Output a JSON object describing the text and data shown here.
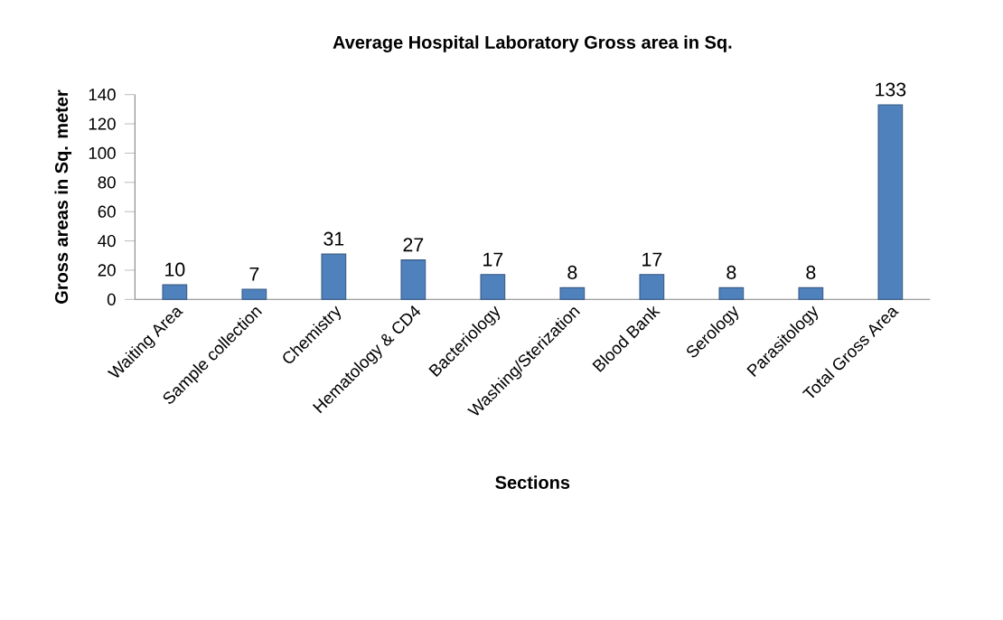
{
  "chart_data": {
    "type": "bar",
    "title": "Average Hospital Laboratory Gross area in Sq.",
    "xlabel": "Sections",
    "ylabel": "Gross areas in Sq. meter",
    "categories": [
      "Waiting Area",
      "Sample collection",
      "Chemistry",
      "Hematology & CD4",
      "Bacteriology",
      "Washing/Sterization",
      "Blood Bank",
      "Serology",
      "Parasitology",
      "Total Gross Area"
    ],
    "values": [
      10,
      7,
      31,
      27,
      17,
      8,
      17,
      8,
      8,
      133
    ],
    "color": "#4f81bd",
    "ylim": [
      0,
      140
    ],
    "yticks": [
      0,
      20,
      40,
      60,
      80,
      100,
      120,
      140
    ],
    "data_labels": true,
    "grid": false
  }
}
